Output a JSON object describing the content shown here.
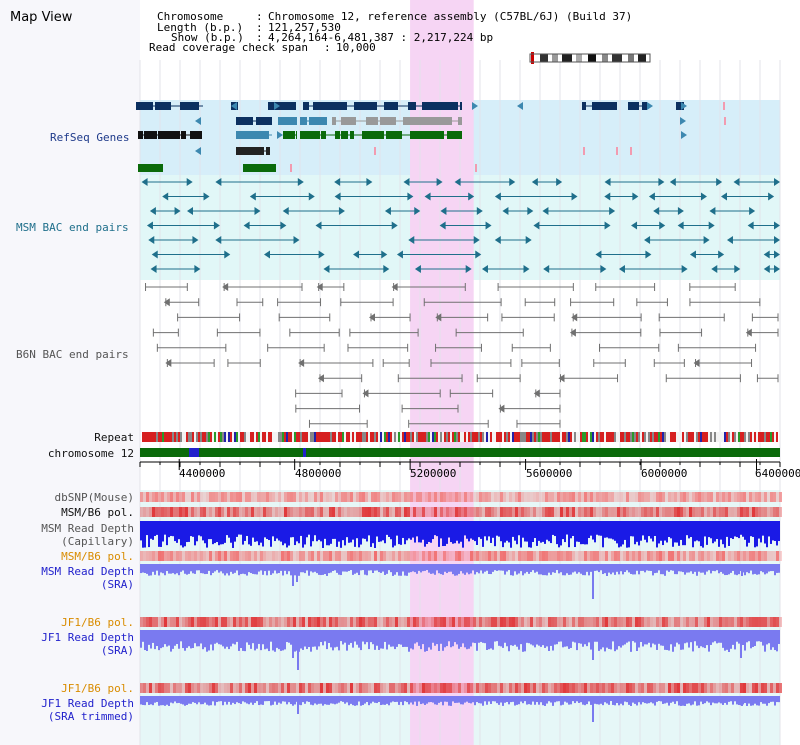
{
  "title": "Map View",
  "info": {
    "chromosome_key": "Chromosome",
    "chromosome_value": "Chromosome 12, reference assembly (C57BL/6J) (Build 37)",
    "length_key": "Length (b.p.)",
    "length_value": "121,257,530",
    "show_key": "Show (b.p.)",
    "show_value": "4,264,164-6,481,387 : 2,217,224 bp",
    "read_coverage_key": "Read coverage check span",
    "read_coverage_value": "10,000"
  },
  "view": {
    "start": 4264164,
    "end": 6481387,
    "highlight_start": 5200000,
    "highlight_end": 5420000
  },
  "axis_ticks": [
    "4400000",
    "4800000",
    "5200000",
    "5600000",
    "6000000",
    "6400000"
  ],
  "axis_tick_values": [
    4400000,
    4800000,
    5200000,
    5600000,
    6000000,
    6400000
  ],
  "tracks": {
    "refseq": "RefSeq Genes",
    "msm_bac": "MSM BAC end pairs",
    "b6n_bac": "B6N BAC end pairs",
    "repeat": "Repeat",
    "chromosome": "chromosome 12",
    "dbsnp": "dbSNP(Mouse)",
    "msm_b6_pol_1": "MSM/B6 pol.",
    "msm_read_depth_cap_1": "MSM Read Depth",
    "msm_read_depth_cap_2": "(Capillary)",
    "msm_b6_pol_2": "MSM/B6 pol.",
    "msm_read_depth_sra_1": "MSM Read Depth",
    "msm_read_depth_sra_2": "(SRA)",
    "jf1_b6_pol_1": "JF1/B6 pol.",
    "jf1_read_depth_1": "JF1 Read Depth",
    "jf1_read_depth_2": "(SRA)",
    "jf1_b6_pol_2": "JF1/B6 pol.",
    "jf1_read_depth_tr_1": "JF1 Read Depth",
    "jf1_read_depth_tr_2": "(SRA trimmed)"
  },
  "colors": {
    "highlight": "#f6d5f4",
    "refseq_bg": "#d6eef9",
    "msm_bg": "#e1f7f7",
    "gene": "#0c3060",
    "gene_alt": "#3d88b0",
    "gene_green": "#0a6a0a",
    "msm_line": "#1f6f8b",
    "b6n_line": "#707070",
    "chrom": "#0a6a0a",
    "depth_cap": "#1a1ae6",
    "depth_sra": "#7a7af0",
    "pol_red": "#e0383a",
    "label_blue": "#2222cc",
    "label_orange": "#d98c00"
  }
}
